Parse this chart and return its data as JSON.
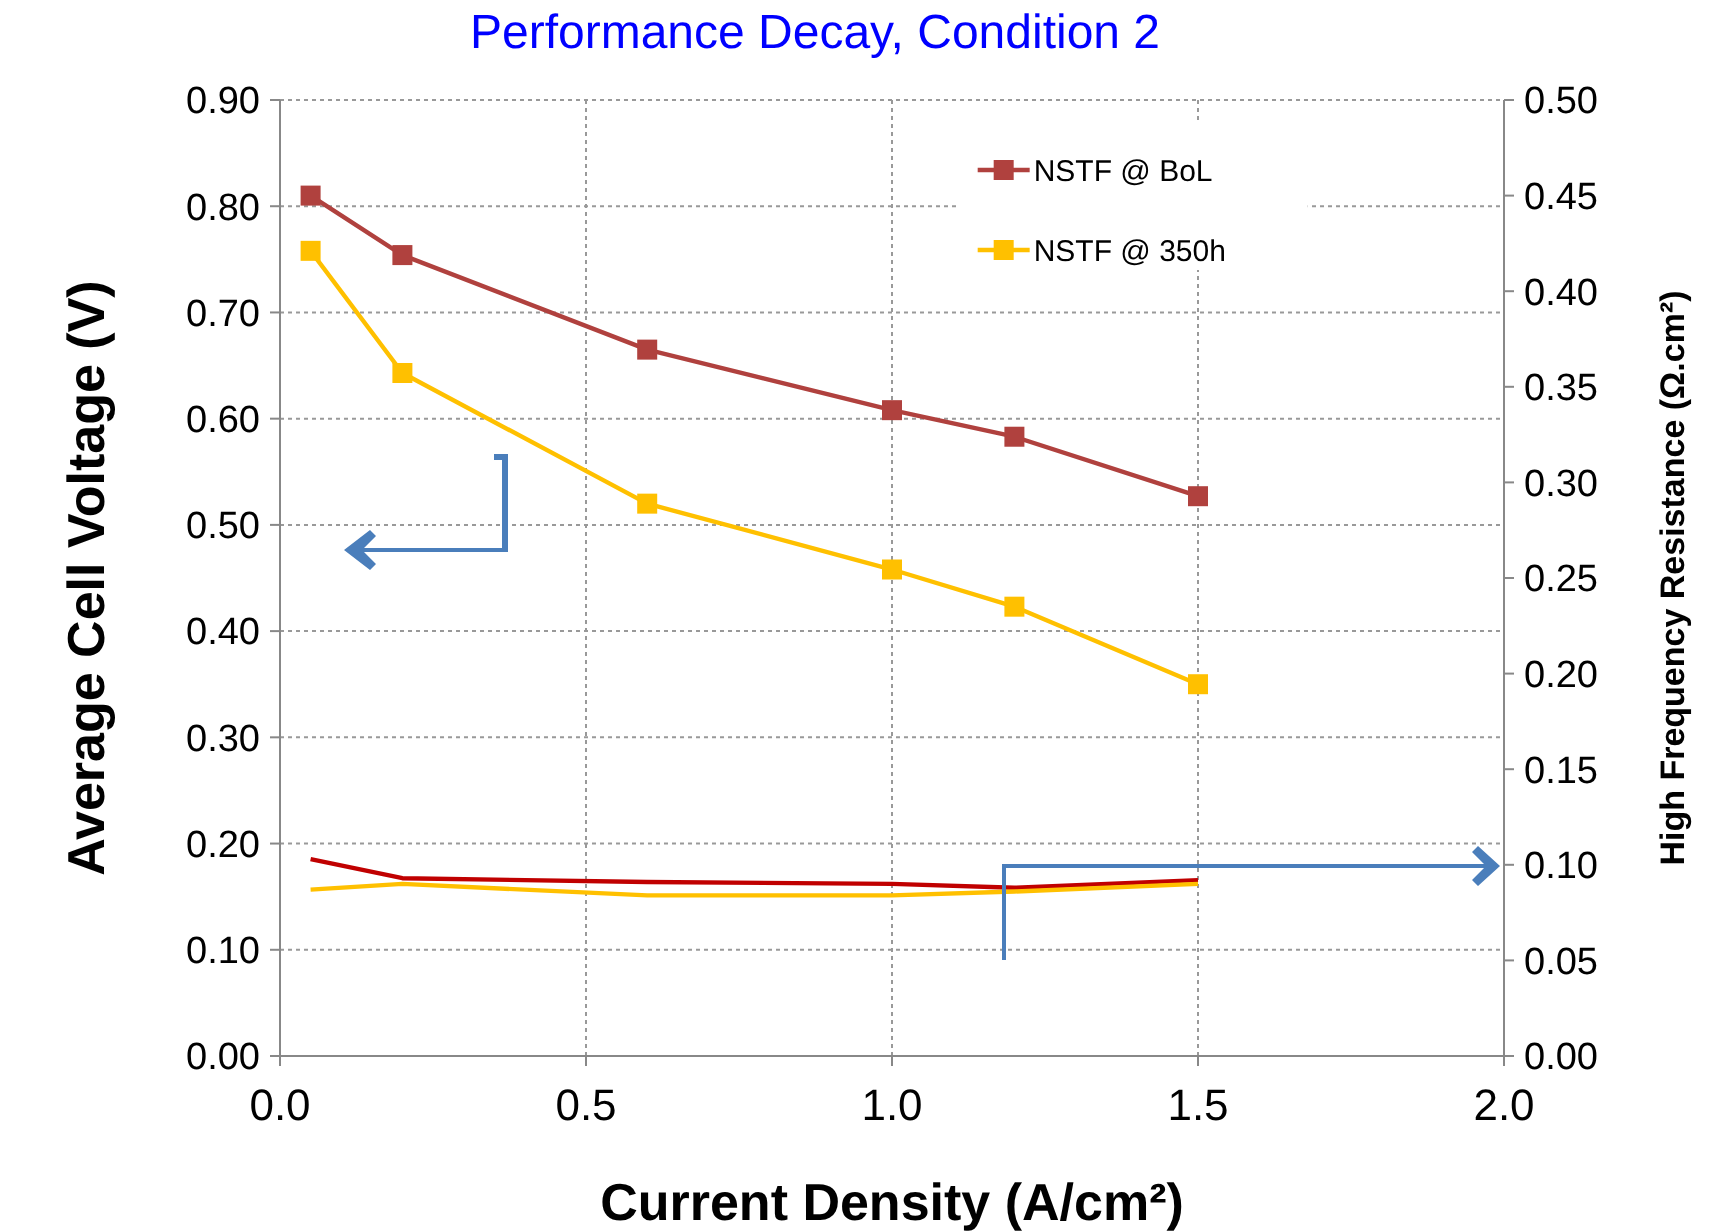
{
  "chart_data": {
    "type": "line",
    "title": "Performance Decay, Condition 2",
    "xlabel": "Current Density (A/cm²)",
    "ylabel": "Average Cell Voltage (V)",
    "y2label": "High Frequency Resistance (Ω.cm²)",
    "x": [
      0.05,
      0.2,
      0.6,
      1.0,
      1.2,
      1.5
    ],
    "series": [
      {
        "name": "NSTF @ BoL",
        "color": "#b0413e",
        "marker": "square",
        "values": [
          0.81,
          0.754,
          0.665,
          0.608,
          0.583,
          0.527
        ]
      },
      {
        "name": "NSTF @ 350h",
        "color": "#ffc000",
        "marker": "square",
        "values": [
          0.758,
          0.643,
          0.52,
          0.458,
          0.423,
          0.35
        ]
      },
      {
        "color": "#c00000",
        "marker": "none",
        "axis": "y2",
        "values": [
          0.103,
          0.093,
          0.091,
          0.09,
          0.088,
          0.092
        ]
      },
      {
        "color": "#ffc000",
        "marker": "none",
        "axis": "y2",
        "values": [
          0.087,
          0.09,
          0.084,
          0.084,
          0.086,
          0.09
        ]
      }
    ],
    "xlim": [
      0,
      2
    ],
    "xticks": [
      {
        "value": 0,
        "label": "0.0"
      },
      {
        "value": 0.5,
        "label": "0.5"
      },
      {
        "value": 1,
        "label": "1.0"
      },
      {
        "value": 1.5,
        "label": "1.5"
      },
      {
        "value": 2,
        "label": "2.0"
      }
    ],
    "ylim": [
      0,
      0.9
    ],
    "yticks": [
      {
        "value": 0,
        "label": "0.00"
      },
      {
        "value": 0.1,
        "label": "0.10"
      },
      {
        "value": 0.2,
        "label": "0.20"
      },
      {
        "value": 0.3,
        "label": "0.30"
      },
      {
        "value": 0.4,
        "label": "0.40"
      },
      {
        "value": 0.5,
        "label": "0.50"
      },
      {
        "value": 0.6,
        "label": "0.60"
      },
      {
        "value": 0.7,
        "label": "0.70"
      },
      {
        "value": 0.8,
        "label": "0.80"
      },
      {
        "value": 0.9,
        "label": "0.90"
      }
    ],
    "y2lim": [
      0,
      0.5
    ],
    "y2ticks": [
      {
        "value": 0,
        "label": "0.00"
      },
      {
        "value": 0.05,
        "label": "0.05"
      },
      {
        "value": 0.1,
        "label": "0.10"
      },
      {
        "value": 0.15,
        "label": "0.15"
      },
      {
        "value": 0.2,
        "label": "0.20"
      },
      {
        "value": 0.25,
        "label": "0.25"
      },
      {
        "value": 0.3,
        "label": "0.30"
      },
      {
        "value": 0.35,
        "label": "0.35"
      },
      {
        "value": 0.4,
        "label": "0.40"
      },
      {
        "value": 0.45,
        "label": "0.45"
      },
      {
        "value": 0.5,
        "label": "0.50"
      }
    ],
    "grid": true,
    "legend": "top right",
    "line_style": "solid"
  }
}
